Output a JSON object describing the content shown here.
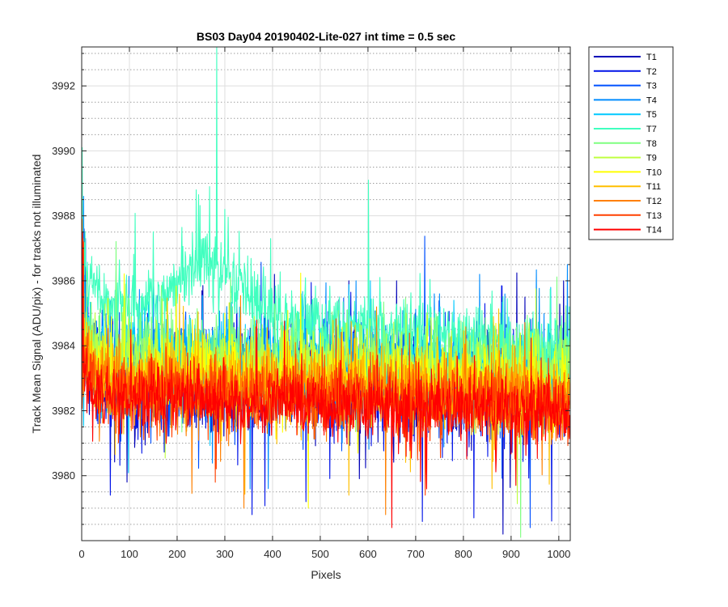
{
  "chart_data": {
    "type": "line",
    "title": "BS03 Day04 20190402-Lite-027 int time = 0.5 sec",
    "xlabel": "Pixels",
    "ylabel": "Track Mean Signal (ADU/pix) - for tracks not illuminated",
    "xlim": [
      0,
      1024
    ],
    "ylim": [
      3978,
      3993.2
    ],
    "x_ticks": [
      0,
      100,
      200,
      300,
      400,
      500,
      600,
      700,
      800,
      900,
      1000
    ],
    "y_ticks": [
      3980,
      3982,
      3984,
      3986,
      3988,
      3990,
      3992
    ],
    "y_minor_ticks": [
      3978.5,
      3979,
      3979.5,
      3980.5,
      3981,
      3981.5,
      3982.5,
      3983,
      3983.5,
      3984.5,
      3985,
      3985.5,
      3986.5,
      3987,
      3987.5,
      3988.5,
      3989,
      3989.5,
      3990.5,
      3991,
      3991.5,
      3992.5,
      3993
    ],
    "grid": true,
    "minor_grid": true,
    "legend_position": "outside-top-right",
    "x_sampling": {
      "start": 0,
      "end": 1023,
      "step": 1
    },
    "series": [
      {
        "name": "T1",
        "color": "#0000b8",
        "center": 3982.8,
        "spread": 1.25,
        "profile": [
          [
            0,
            3983.9
          ],
          [
            30,
            3983.2
          ],
          [
            100,
            3983.0
          ],
          [
            400,
            3982.9
          ],
          [
            1023,
            3982.8
          ]
        ],
        "extremes": [
          [
            3,
            3986.8
          ],
          [
            95,
            3979.8
          ],
          [
            404,
            3986.2
          ],
          [
            560,
            3986.0
          ],
          [
            660,
            3986.0
          ],
          [
            883,
            3978.2
          ],
          [
            1010,
            3986.0
          ]
        ]
      },
      {
        "name": "T2",
        "color": "#0013e8",
        "center": 3982.7,
        "spread": 1.3,
        "profile": [
          [
            0,
            3984.0
          ],
          [
            30,
            3983.2
          ],
          [
            100,
            3982.9
          ],
          [
            1023,
            3982.7
          ]
        ],
        "extremes": [
          [
            5,
            3987.6
          ],
          [
            60,
            3979.4
          ],
          [
            357,
            3978.8
          ],
          [
            470,
            3979.2
          ],
          [
            822,
            3978.7
          ],
          [
            985,
            3978.6
          ]
        ]
      },
      {
        "name": "T3",
        "color": "#0050ff",
        "center": 3982.9,
        "spread": 1.2,
        "profile": [
          [
            0,
            3984.0
          ],
          [
            30,
            3983.3
          ],
          [
            1023,
            3982.9
          ]
        ],
        "extremes": [
          [
            8,
            3987.3
          ],
          [
            540,
            3985.5
          ],
          [
            730,
            3985.6
          ],
          [
            940,
            3978.4
          ]
        ]
      },
      {
        "name": "T4",
        "color": "#008cff",
        "center": 3983.0,
        "spread": 1.1,
        "profile": [
          [
            0,
            3984.2
          ],
          [
            30,
            3983.5
          ],
          [
            1023,
            3983.0
          ]
        ],
        "extremes": [
          [
            4,
            3988.6
          ],
          [
            150,
            3986.0
          ],
          [
            575,
            3986.0
          ],
          [
            750,
            3985.6
          ],
          [
            1018,
            3986.5
          ]
        ]
      },
      {
        "name": "T5",
        "color": "#00c8ff",
        "center": 3983.2,
        "spread": 1.05,
        "profile": [
          [
            0,
            3984.4
          ],
          [
            40,
            3983.8
          ],
          [
            1023,
            3983.2
          ]
        ],
        "extremes": [
          [
            6,
            3987.0
          ],
          [
            460,
            3985.6
          ],
          [
            605,
            3986.0
          ],
          [
            780,
            3985.4
          ]
        ]
      },
      {
        "name": "T7",
        "color": "#40ffbf",
        "center": 3984.6,
        "spread": 0.85,
        "profile": [
          [
            0,
            3986.3
          ],
          [
            40,
            3985.4
          ],
          [
            120,
            3985.2
          ],
          [
            200,
            3985.8
          ],
          [
            260,
            3986.8
          ],
          [
            300,
            3986.2
          ],
          [
            400,
            3984.8
          ],
          [
            600,
            3984.6
          ],
          [
            1023,
            3983.9
          ]
        ],
        "extremes": [
          [
            1,
            3990.1
          ],
          [
            240,
            3988.8
          ],
          [
            268,
            3988.9
          ],
          [
            283,
            3993.2
          ],
          [
            300,
            3988.2
          ],
          [
            396,
            3987.3
          ],
          [
            601,
            3989.1
          ],
          [
            1022,
            3985.2
          ]
        ]
      },
      {
        "name": "T8",
        "color": "#7fff80",
        "center": 3983.4,
        "spread": 1.0,
        "profile": [
          [
            0,
            3984.3
          ],
          [
            40,
            3983.8
          ],
          [
            1023,
            3983.4
          ]
        ],
        "extremes": [
          [
            10,
            3986.3
          ],
          [
            450,
            3985.0
          ],
          [
            920,
            3978.1
          ]
        ]
      },
      {
        "name": "T9",
        "color": "#bfff40",
        "center": 3983.1,
        "spread": 1.0,
        "profile": [
          [
            0,
            3984.1
          ],
          [
            40,
            3983.5
          ],
          [
            1023,
            3983.1
          ]
        ],
        "extremes": [
          [
            2,
            3986.7
          ],
          [
            180,
            3985.3
          ],
          [
            680,
            3985.0
          ]
        ]
      },
      {
        "name": "T10",
        "color": "#ffff00",
        "center": 3982.8,
        "spread": 1.0,
        "profile": [
          [
            0,
            3983.9
          ],
          [
            40,
            3983.2
          ],
          [
            1023,
            3982.8
          ]
        ],
        "extremes": [
          [
            2,
            3986.8
          ],
          [
            300,
            3985.0
          ],
          [
            475,
            3979.0
          ]
        ]
      },
      {
        "name": "T11",
        "color": "#ffbf00",
        "center": 3982.5,
        "spread": 1.0,
        "profile": [
          [
            0,
            3983.7
          ],
          [
            40,
            3983.0
          ],
          [
            1023,
            3982.5
          ]
        ],
        "extremes": [
          [
            3,
            3987.3
          ],
          [
            560,
            3979.4
          ],
          [
            860,
            3979.6
          ]
        ]
      },
      {
        "name": "T12",
        "color": "#ff8000",
        "center": 3982.3,
        "spread": 0.95,
        "profile": [
          [
            0,
            3983.5
          ],
          [
            40,
            3982.8
          ],
          [
            1023,
            3982.3
          ]
        ],
        "extremes": [
          [
            1,
            3987.9
          ],
          [
            340,
            3979.0
          ],
          [
            637,
            3978.8
          ]
        ]
      },
      {
        "name": "T13",
        "color": "#ff4000",
        "center": 3982.1,
        "spread": 0.9,
        "profile": [
          [
            0,
            3983.3
          ],
          [
            40,
            3982.6
          ],
          [
            1023,
            3982.1
          ]
        ],
        "extremes": [
          [
            4,
            3987.2
          ],
          [
            720,
            3979.4
          ]
        ]
      },
      {
        "name": "T14",
        "color": "#ff0000",
        "center": 3982.0,
        "spread": 0.85,
        "profile": [
          [
            0,
            3983.1
          ],
          [
            40,
            3982.4
          ],
          [
            1023,
            3982.0
          ]
        ],
        "extremes": [
          [
            2,
            3987.5
          ],
          [
            650,
            3978.4
          ],
          [
            910,
            3979.7
          ]
        ]
      }
    ]
  }
}
